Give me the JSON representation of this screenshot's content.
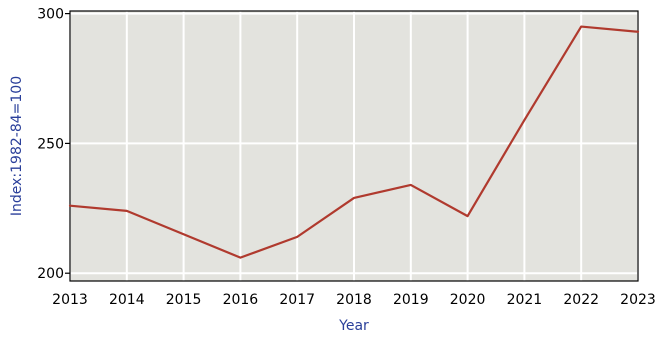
{
  "chart_data": {
    "type": "line",
    "xlabel": "Year",
    "ylabel": "Index:1982-84=100",
    "x": [
      2013,
      2014,
      2015,
      2016,
      2017,
      2018,
      2019,
      2020,
      2021,
      2022,
      2023
    ],
    "series": [
      {
        "values": [
          226,
          224,
          215,
          206,
          214,
          229,
          234,
          222,
          259,
          295,
          293
        ]
      }
    ],
    "xlim": [
      2013,
      2023
    ],
    "ylim": [
      197,
      301
    ],
    "x_ticks": [
      2013,
      2014,
      2015,
      2016,
      2017,
      2018,
      2019,
      2020,
      2021,
      2022,
      2023
    ],
    "y_ticks": [
      200,
      250,
      300
    ],
    "grid": true,
    "legend": "none",
    "colors": {
      "plot_background": "#e3e3de",
      "grid": "#ffffff",
      "line": "#b03a2e",
      "axis_title": "#2a3f9a",
      "frame": "#000000"
    }
  }
}
